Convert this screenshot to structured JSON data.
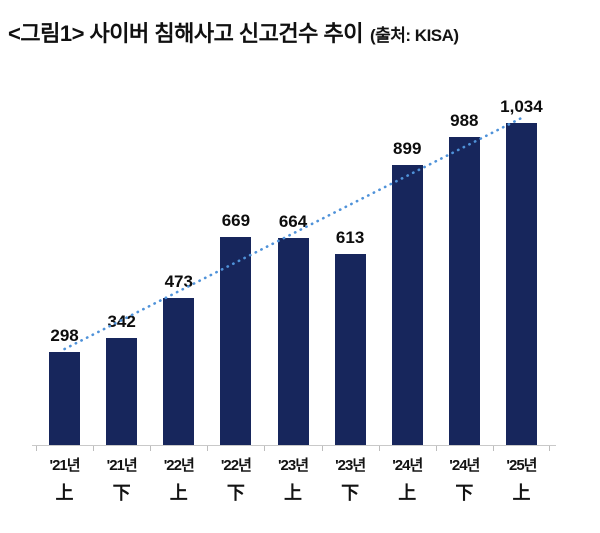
{
  "header": {
    "title": "<그림1> 사이버 침해사고 신고건수 추이",
    "source": "(출처: KISA)"
  },
  "chart_data": {
    "type": "bar",
    "title": "사이버 침해사고 신고건수 추이",
    "source": "KISA",
    "categories": [
      "'21년 上",
      "'21년 下",
      "'22년 上",
      "'22년 下",
      "'23년 上",
      "'23년 下",
      "'24년 上",
      "'24년 下",
      "'25년 上"
    ],
    "category_year": [
      "'21년",
      "'21년",
      "'22년",
      "'22년",
      "'23년",
      "'23년",
      "'24년",
      "'24년",
      "'25년"
    ],
    "category_half": [
      "上",
      "下",
      "上",
      "下",
      "上",
      "下",
      "上",
      "下",
      "上"
    ],
    "values": [
      298,
      342,
      473,
      669,
      664,
      613,
      899,
      988,
      1034
    ],
    "value_labels": [
      "298",
      "342",
      "473",
      "669",
      "664",
      "613",
      "899",
      "988",
      "1,034"
    ],
    "ylim": [
      0,
      1100
    ],
    "grid": false,
    "legend": "none",
    "bar_color": "#17265c",
    "trendline": {
      "type": "linear",
      "style": "dotted",
      "color": "#4f92d9"
    }
  }
}
